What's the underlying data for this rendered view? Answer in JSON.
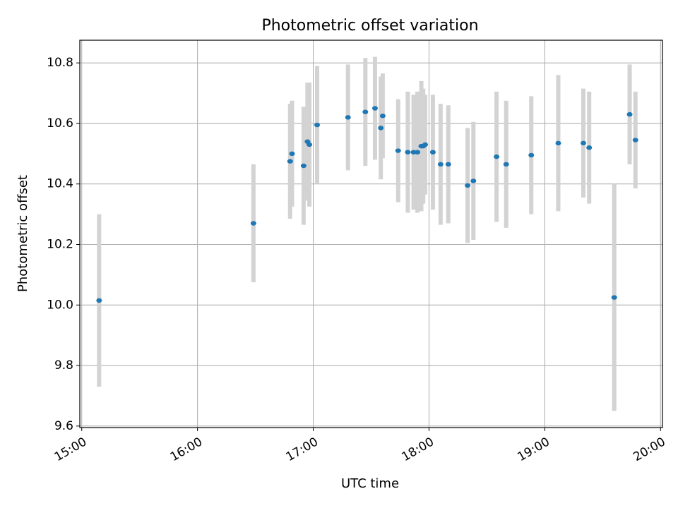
{
  "chart_data": {
    "type": "scatter",
    "title": "Photometric offset variation",
    "xlabel": "UTC time",
    "ylabel": "Photometric offset",
    "x_ticks": [
      "15:00",
      "16:00",
      "17:00",
      "18:00",
      "19:00",
      "20:00"
    ],
    "y_ticks": [
      "9.6",
      "9.8",
      "10.0",
      "10.2",
      "10.4",
      "10.6",
      "10.8"
    ],
    "xlim": [
      "14:59",
      "20:01"
    ],
    "ylim": [
      9.595,
      10.875
    ],
    "grid": true,
    "colors": {
      "points": "#1f77b4",
      "errorbars": "#d3d3d3",
      "grid": "#b0b0b0"
    },
    "points": [
      {
        "x": "15:09",
        "y": 10.015,
        "err": 0.285
      },
      {
        "x": "16:29",
        "y": 10.27,
        "err": 0.195
      },
      {
        "x": "16:48",
        "y": 10.475,
        "err": 0.19
      },
      {
        "x": "16:49",
        "y": 10.5,
        "err": 0.175
      },
      {
        "x": "16:55",
        "y": 10.46,
        "err": 0.195
      },
      {
        "x": "16:57",
        "y": 10.54,
        "err": 0.195
      },
      {
        "x": "16:58",
        "y": 10.53,
        "err": 0.205
      },
      {
        "x": "17:02",
        "y": 10.595,
        "err": 0.195
      },
      {
        "x": "17:18",
        "y": 10.62,
        "err": 0.175
      },
      {
        "x": "17:27",
        "y": 10.638,
        "err": 0.178
      },
      {
        "x": "17:32",
        "y": 10.65,
        "err": 0.17
      },
      {
        "x": "17:35",
        "y": 10.585,
        "err": 0.17
      },
      {
        "x": "17:36",
        "y": 10.625,
        "err": 0.14
      },
      {
        "x": "17:44",
        "y": 10.51,
        "err": 0.17
      },
      {
        "x": "17:49",
        "y": 10.505,
        "err": 0.2
      },
      {
        "x": "17:52",
        "y": 10.505,
        "err": 0.19
      },
      {
        "x": "17:54",
        "y": 10.505,
        "err": 0.2
      },
      {
        "x": "17:56",
        "y": 10.525,
        "err": 0.215
      },
      {
        "x": "17:57",
        "y": 10.525,
        "err": 0.19
      },
      {
        "x": "17:58",
        "y": 10.53,
        "err": 0.165
      },
      {
        "x": "18:02",
        "y": 10.505,
        "err": 0.19
      },
      {
        "x": "18:06",
        "y": 10.465,
        "err": 0.2
      },
      {
        "x": "18:10",
        "y": 10.465,
        "err": 0.195
      },
      {
        "x": "18:20",
        "y": 10.395,
        "err": 0.19
      },
      {
        "x": "18:23",
        "y": 10.41,
        "err": 0.195
      },
      {
        "x": "18:35",
        "y": 10.49,
        "err": 0.215
      },
      {
        "x": "18:40",
        "y": 10.465,
        "err": 0.21
      },
      {
        "x": "18:53",
        "y": 10.495,
        "err": 0.195
      },
      {
        "x": "19:07",
        "y": 10.535,
        "err": 0.225
      },
      {
        "x": "19:20",
        "y": 10.535,
        "err": 0.18
      },
      {
        "x": "19:23",
        "y": 10.52,
        "err": 0.185
      },
      {
        "x": "19:36",
        "y": 10.025,
        "err": 0.375
      },
      {
        "x": "19:44",
        "y": 10.63,
        "err": 0.165
      },
      {
        "x": "19:47",
        "y": 10.545,
        "err": 0.16
      }
    ]
  }
}
